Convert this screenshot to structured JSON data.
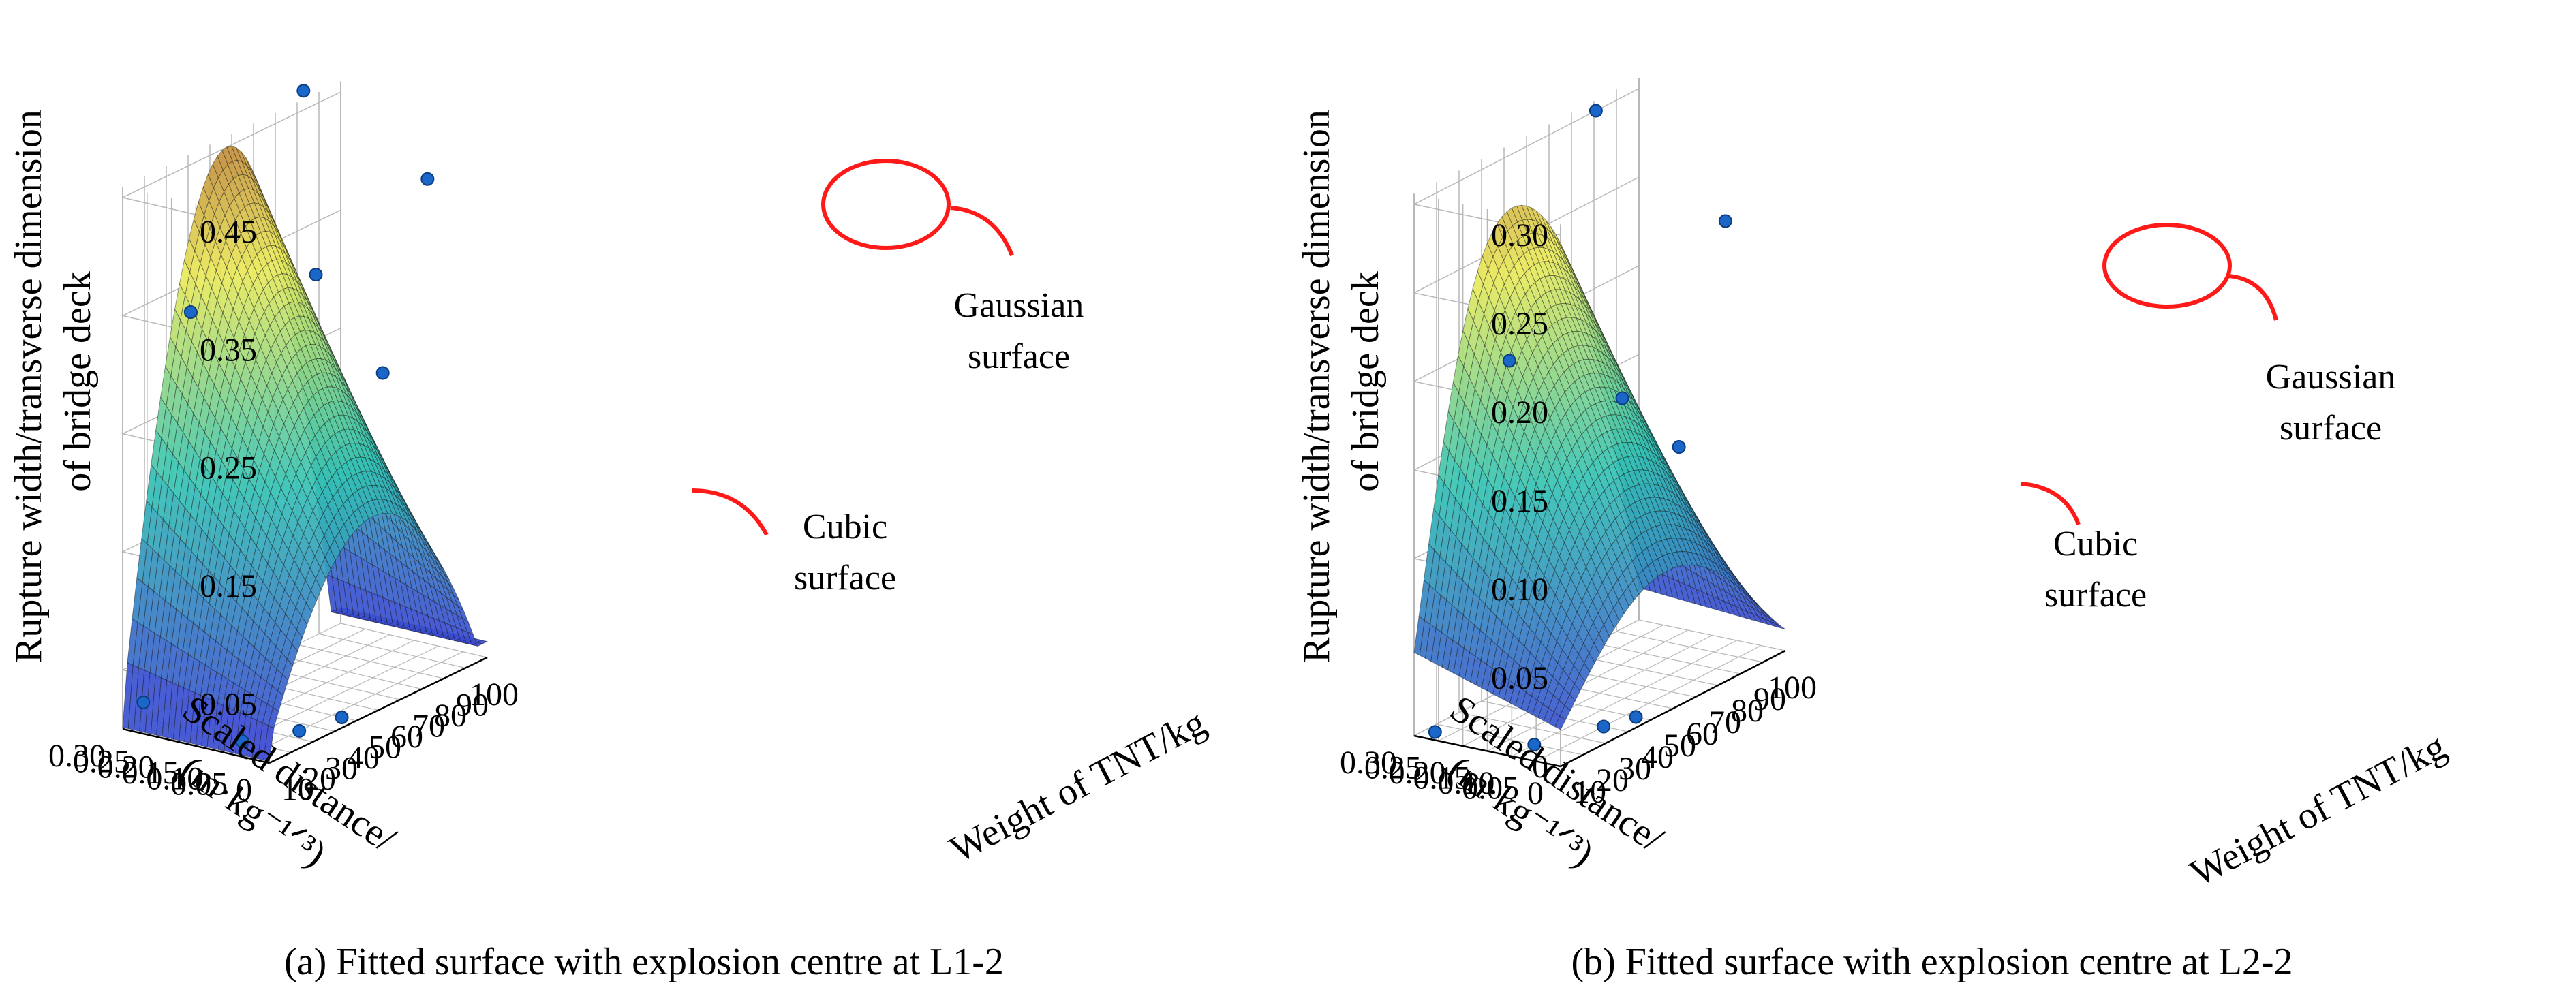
{
  "colors": {
    "surface_low": "#3b3fd4",
    "surface_mid": "#34c3b4",
    "surface_high": "#eaea5a",
    "surface_peak": "#c08a3a",
    "highlight": "#ff1a1a",
    "point": "#1a67c9",
    "grid": "#b8b8b8"
  },
  "chart_data": [
    {
      "type": "surface",
      "caption": "(a) Fitted surface with explosion centre at L1-2",
      "zlabel": "Rupture width/transverse dimension of bridge deck",
      "xlabel": "Weight of TNT/kg",
      "ylabel": "Scaled distance/ (m·kg⁻¹ᐟ³)",
      "z_ticks": [
        "0.05",
        "0.15",
        "0.25",
        "0.35",
        "0.45"
      ],
      "x_ticks": [
        "10",
        "20",
        "30",
        "40",
        "50",
        "60",
        "70",
        "80",
        "90",
        "100"
      ],
      "y_ticks": [
        "0",
        "0.05",
        "0.10",
        "0.15",
        "0.20",
        "0.25",
        "0.30"
      ],
      "zlim": [
        0,
        0.45
      ],
      "xlim": [
        0,
        100
      ],
      "ylim": [
        0,
        0.3
      ],
      "annotations": [
        {
          "line1": "Gaussian",
          "line2": "surface"
        },
        {
          "line1": "Cubic",
          "line2": "surface"
        }
      ],
      "surface_peak": 0.45,
      "corner_values": {
        "near_left": 0.02,
        "far_left": 0.02,
        "near_right": 0.02,
        "far_right": 0.35
      },
      "points": [
        {
          "x": 5,
          "y": 0.28,
          "z": 0.02
        },
        {
          "x": 10,
          "y": 0.1,
          "z": 0.0
        },
        {
          "x": 25,
          "y": 0.05,
          "z": 0.0
        },
        {
          "x": 40,
          "y": 0.03,
          "z": 0.0
        },
        {
          "x": 20,
          "y": 0.25,
          "z": 0.34
        },
        {
          "x": 55,
          "y": 0.15,
          "z": 0.35
        },
        {
          "x": 70,
          "y": 0.08,
          "z": 0.26
        },
        {
          "x": 65,
          "y": 0.22,
          "z": 0.49
        },
        {
          "x": 95,
          "y": 0.1,
          "z": 0.4
        }
      ]
    },
    {
      "type": "surface",
      "caption": "(b) Fitted surface with explosion centre at L2-2",
      "zlabel": "Rupture width/transverse dimension of bridge deck",
      "xlabel": "Weight of TNT/kg",
      "ylabel": "Scaled distance/ (m·kg⁻¹ᐟ³)",
      "z_ticks": [
        "0",
        "0.05",
        "0.10",
        "0.15",
        "0.20",
        "0.25",
        "0.30"
      ],
      "x_ticks": [
        "10",
        "20",
        "30",
        "40",
        "50",
        "60",
        "70",
        "80",
        "90",
        "100"
      ],
      "y_ticks": [
        "0",
        "0.05",
        "0.10",
        "0.15",
        "0.20",
        "0.25",
        "0.30"
      ],
      "zlim": [
        0,
        0.3
      ],
      "xlim": [
        0,
        100
      ],
      "ylim": [
        0,
        0.3
      ],
      "annotations": [
        {
          "line1": "Gaussian",
          "line2": "surface"
        },
        {
          "line1": "Cubic",
          "line2": "surface"
        }
      ],
      "surface_peak": 0.29,
      "corner_values": {
        "near_left": 0.0,
        "far_left": 0.0,
        "near_right": 0.0,
        "far_right": 0.23
      },
      "points": [
        {
          "x": 5,
          "y": 0.28,
          "z": 0.0
        },
        {
          "x": 10,
          "y": 0.1,
          "z": 0.0
        },
        {
          "x": 30,
          "y": 0.05,
          "z": 0.0
        },
        {
          "x": 40,
          "y": 0.03,
          "z": 0.0
        },
        {
          "x": 25,
          "y": 0.22,
          "z": 0.2
        },
        {
          "x": 60,
          "y": 0.15,
          "z": 0.16
        },
        {
          "x": 70,
          "y": 0.08,
          "z": 0.13
        },
        {
          "x": 70,
          "y": 0.25,
          "z": 0.31
        },
        {
          "x": 95,
          "y": 0.1,
          "z": 0.24
        }
      ]
    }
  ]
}
